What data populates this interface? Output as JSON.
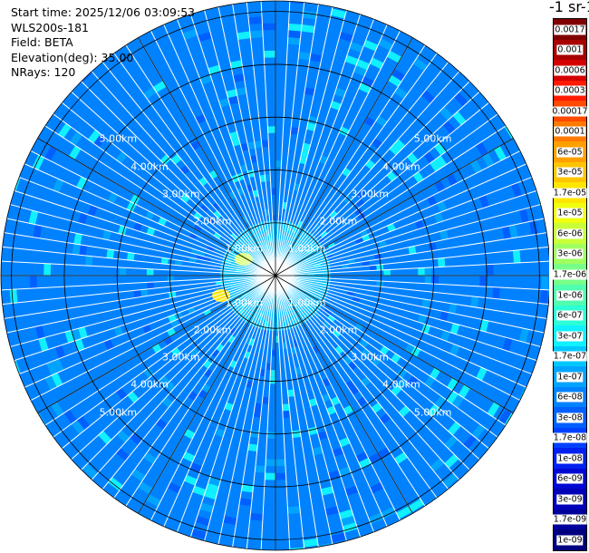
{
  "info": {
    "start_time": "Start time: 2025/12/06 03:09:53",
    "instrument": "WLS200s-181",
    "field": "Field: BETA",
    "elevation": "Elevation(deg): 35.00",
    "nrays": "NRays: 120"
  },
  "colorbar": {
    "title": "-1 sr-1",
    "labels": [
      "0.0017",
      "0.001",
      "0.0006",
      "0.0003",
      "0.00017",
      "0.0001",
      "6e-05",
      "3e-05",
      "1.7e-05",
      "1e-05",
      "6e-06",
      "3e-06",
      "1.7e-06",
      "1e-06",
      "6e-07",
      "3e-07",
      "1.7e-07",
      "1e-07",
      "6e-08",
      "3e-08",
      "1.7e-08",
      "1e-08",
      "6e-09",
      "3e-09",
      "1.7e-09",
      "1e-09"
    ],
    "colors": [
      "#800000",
      "#a80000",
      "#d40000",
      "#ff1a00",
      "#ff4a00",
      "#ff7a00",
      "#ffa000",
      "#ffc400",
      "#ffe600",
      "#f0ff10",
      "#c8ff38",
      "#a0ff60",
      "#78ff88",
      "#50ffaf",
      "#2cffd6",
      "#10f0ff",
      "#00c8ff",
      "#00a4ff",
      "#0082ff",
      "#0060ff",
      "#0040ff",
      "#0020f0",
      "#0008d4",
      "#0000b8",
      "#00009c",
      "#000080"
    ]
  },
  "chart_data": {
    "type": "heatmap",
    "title": "",
    "subtitle": "Start time: 2025/12/06 03:09:53",
    "field": "BETA",
    "elevation_deg": 35.0,
    "n_rays": 120,
    "range_rings_km": [
      1.0,
      2.0,
      3.0,
      4.0,
      5.0
    ],
    "range_ring_labels": [
      "1.00km",
      "2.00km",
      "3.00km",
      "4.00km",
      "5.00km"
    ],
    "max_range_km": 5.2,
    "scale": "log",
    "background_beta": 6e-08,
    "near_field_beta": 3e-07,
    "near_field_hotspots_beta": [
      1.7e-05,
      6e-06
    ],
    "near_field_radius_km": 1.9
  }
}
